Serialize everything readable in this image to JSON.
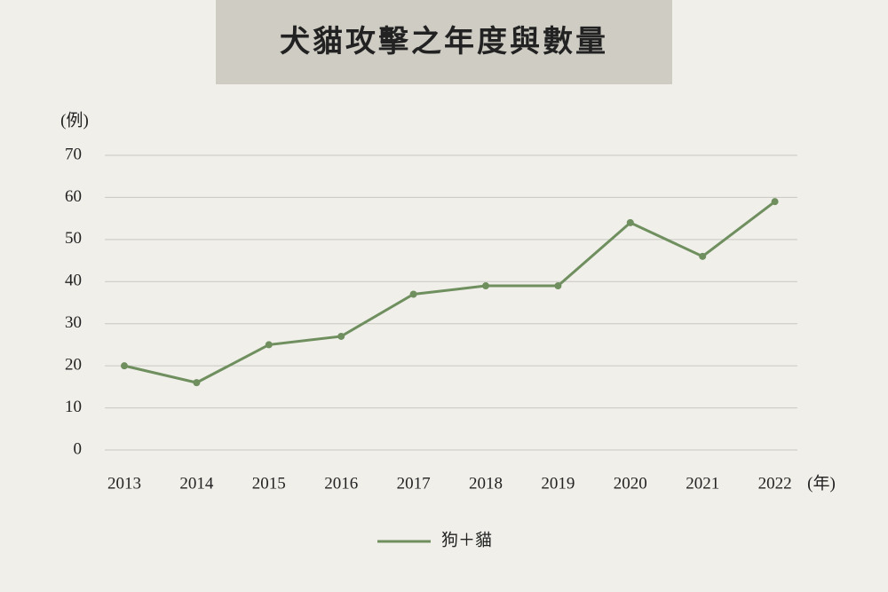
{
  "chart_data": {
    "type": "line",
    "title": "犬貓攻擊之年度與數量",
    "y_label": "(例)",
    "x_label": "(年)",
    "categories": [
      "2013",
      "2014",
      "2015",
      "2016",
      "2017",
      "2018",
      "2019",
      "2020",
      "2021",
      "2022"
    ],
    "series": [
      {
        "name": "狗＋貓",
        "color": "#6f8f5f",
        "values": [
          20,
          16,
          25,
          27,
          37,
          39,
          39,
          54,
          46,
          59
        ]
      }
    ],
    "ylim": [
      0,
      70
    ],
    "yticks": [
      0,
      10,
      20,
      30,
      40,
      50,
      60,
      70
    ],
    "grid": true,
    "legend": "bottom"
  }
}
